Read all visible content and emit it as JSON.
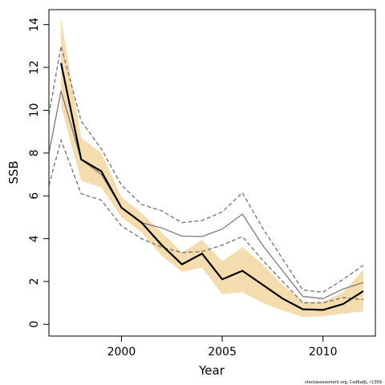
{
  "chart_data": {
    "type": "line",
    "xlabel": "Year",
    "ylabel": "SSB",
    "xlim": [
      1996.4,
      2012.6
    ],
    "ylim": [
      -0.55,
      14.7
    ],
    "xticks": [
      2000,
      2005,
      2010
    ],
    "yticks": [
      0,
      2,
      4,
      6,
      8,
      10,
      12,
      14
    ],
    "footnote": "stockassessment.org, CodKatJL, r1359",
    "colors": {
      "band": "#f5dcae",
      "estimate": "#000000",
      "reference": "#7a7a7a",
      "reference_ci": "#7a7a7a"
    },
    "series": [
      {
        "role": "estimate",
        "style": "solid-thick-black",
        "x": [
          1997,
          1998,
          1999,
          2000,
          2001,
          2002,
          2003,
          2004,
          2005,
          2006,
          2007,
          2008,
          2009,
          2010,
          2011,
          2012
        ],
        "y": [
          12.2,
          7.7,
          7.15,
          5.45,
          4.75,
          3.7,
          2.8,
          3.3,
          2.1,
          2.5,
          1.85,
          1.2,
          0.7,
          0.67,
          0.95,
          1.55
        ],
        "lower": [
          10.2,
          6.7,
          6.4,
          5.0,
          4.3,
          3.2,
          2.45,
          2.65,
          1.4,
          1.5,
          1.0,
          0.65,
          0.35,
          0.38,
          0.5,
          0.6
        ],
        "upper": [
          14.3,
          8.7,
          8.0,
          5.95,
          5.2,
          4.3,
          3.35,
          3.95,
          2.95,
          3.6,
          2.8,
          1.85,
          1.05,
          1.05,
          1.5,
          2.55
        ]
      },
      {
        "role": "reference",
        "style": "solid-thin-gray",
        "x": [
          1996.4,
          1997,
          1998,
          1999,
          2000,
          2001,
          2002,
          2003,
          2004,
          2005,
          2006,
          2007,
          2008,
          2009,
          2010,
          2011,
          2012
        ],
        "y": [
          8.0,
          10.9,
          7.7,
          7.0,
          5.45,
          4.75,
          4.5,
          4.12,
          4.1,
          4.45,
          5.15,
          3.7,
          2.5,
          1.3,
          1.2,
          1.65,
          1.95
        ],
        "lower": [
          6.5,
          8.6,
          6.1,
          5.8,
          4.6,
          4.0,
          3.6,
          3.35,
          3.4,
          3.7,
          4.1,
          3.0,
          2.0,
          1.0,
          1.0,
          1.25,
          1.15
        ],
        "upper": [
          9.8,
          13.0,
          9.5,
          8.2,
          6.5,
          5.6,
          5.3,
          4.75,
          4.85,
          5.25,
          6.15,
          4.5,
          3.05,
          1.6,
          1.5,
          2.1,
          2.75
        ]
      }
    ]
  }
}
